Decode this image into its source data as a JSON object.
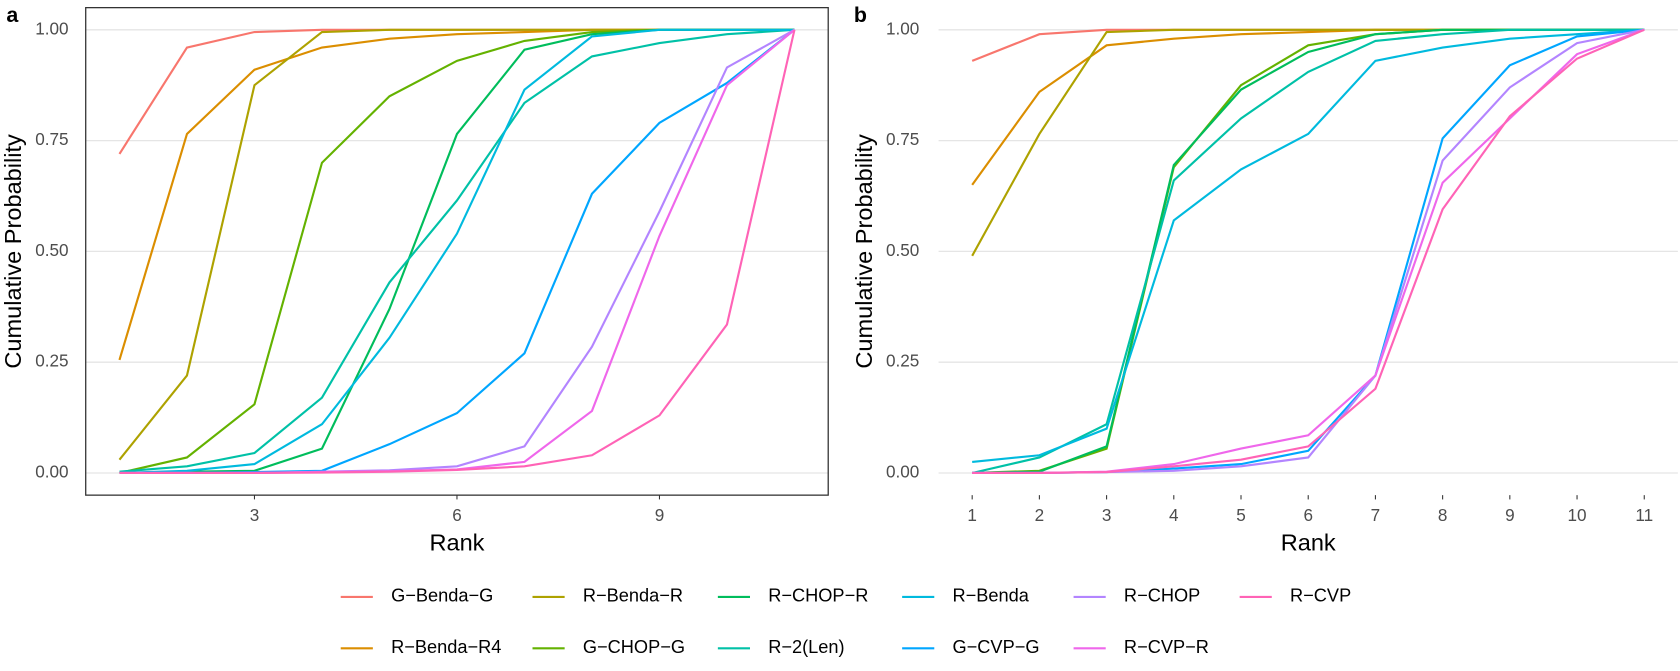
{
  "chart_data": [
    {
      "type": "line",
      "panel_label": "a",
      "xlabel": "Rank",
      "ylabel": "Cumulative Probability",
      "x": [
        1,
        2,
        3,
        4,
        5,
        6,
        7,
        8,
        9,
        10,
        11
      ],
      "xlim": [
        0.5,
        11.5
      ],
      "xticks": [
        3,
        6,
        9
      ],
      "ylim": [
        -0.05,
        1.05
      ],
      "yticks": [
        {
          "value": 0,
          "label": "0.00"
        },
        {
          "value": 0.25,
          "label": "0.25"
        },
        {
          "value": 0.5,
          "label": "0.50"
        },
        {
          "value": 0.75,
          "label": "0.75"
        },
        {
          "value": 1,
          "label": "1.00"
        }
      ],
      "grid": true,
      "border": true,
      "series": [
        {
          "name": "G−Benda−G",
          "color": "#F8766D",
          "values": [
            0.72,
            0.96,
            0.995,
            1,
            1,
            1,
            1,
            1,
            1,
            1,
            1
          ]
        },
        {
          "name": "R−Benda−R4",
          "color": "#DB8E00",
          "values": [
            0.255,
            0.765,
            0.91,
            0.96,
            0.98,
            0.99,
            0.995,
            1,
            1,
            1,
            1
          ]
        },
        {
          "name": "R−Benda−R",
          "color": "#AEA200",
          "values": [
            0.03,
            0.22,
            0.875,
            0.995,
            1,
            1,
            1,
            1,
            1,
            1,
            1
          ]
        },
        {
          "name": "G−CHOP−G",
          "color": "#64B200",
          "values": [
            0,
            0.035,
            0.155,
            0.7,
            0.85,
            0.93,
            0.975,
            0.995,
            1,
            1,
            1
          ]
        },
        {
          "name": "R−CHOP−R",
          "color": "#00BD5C",
          "values": [
            0,
            0.003,
            0.005,
            0.055,
            0.37,
            0.765,
            0.955,
            0.99,
            1,
            1,
            1
          ]
        },
        {
          "name": "R−2(Len)",
          "color": "#00C1A7",
          "values": [
            0.003,
            0.015,
            0.045,
            0.17,
            0.43,
            0.615,
            0.835,
            0.94,
            0.97,
            0.99,
            1
          ]
        },
        {
          "name": "R−Benda",
          "color": "#00BADE",
          "values": [
            0,
            0.005,
            0.02,
            0.11,
            0.305,
            0.54,
            0.865,
            0.985,
            1,
            1,
            1
          ]
        },
        {
          "name": "G−CVP−G",
          "color": "#00A6FF",
          "values": [
            0,
            0,
            0.002,
            0.005,
            0.065,
            0.135,
            0.27,
            0.63,
            0.79,
            0.88,
            1
          ]
        },
        {
          "name": "R−CHOP",
          "color": "#B385FF",
          "values": [
            0,
            0,
            0,
            0.003,
            0.006,
            0.015,
            0.06,
            0.285,
            0.59,
            0.915,
            1
          ]
        },
        {
          "name": "R−CVP−R",
          "color": "#EF67EB",
          "values": [
            0,
            0,
            0,
            0.002,
            0.004,
            0.008,
            0.025,
            0.14,
            0.535,
            0.875,
            1
          ]
        },
        {
          "name": "R−CVP",
          "color": "#FF63B6",
          "values": [
            0,
            0,
            0,
            0.001,
            0.003,
            0.007,
            0.015,
            0.04,
            0.13,
            0.335,
            1
          ]
        }
      ]
    },
    {
      "type": "line",
      "panel_label": "b",
      "xlabel": "Rank",
      "ylabel": "Cumulative Probability",
      "x": [
        1,
        2,
        3,
        4,
        5,
        6,
        7,
        8,
        9,
        10,
        11
      ],
      "xlim": [
        0.5,
        11.5
      ],
      "xticks": [
        1,
        2,
        3,
        4,
        5,
        6,
        7,
        8,
        9,
        10,
        11
      ],
      "ylim": [
        -0.05,
        1.05
      ],
      "yticks": [
        {
          "value": 0,
          "label": "0.00"
        },
        {
          "value": 0.25,
          "label": "0.25"
        },
        {
          "value": 0.5,
          "label": "0.50"
        },
        {
          "value": 0.75,
          "label": "0.75"
        },
        {
          "value": 1,
          "label": "1.00"
        }
      ],
      "grid": true,
      "border": false,
      "series": [
        {
          "name": "G−Benda−G",
          "color": "#F8766D",
          "values": [
            0.93,
            0.99,
            1,
            1,
            1,
            1,
            1,
            1,
            1,
            1,
            1
          ]
        },
        {
          "name": "R−Benda−R4",
          "color": "#DB8E00",
          "values": [
            0.65,
            0.86,
            0.965,
            0.98,
            0.99,
            0.995,
            1,
            1,
            1,
            1,
            1
          ]
        },
        {
          "name": "R−Benda−R",
          "color": "#AEA200",
          "values": [
            0.49,
            0.765,
            0.995,
            1,
            1,
            1,
            1,
            1,
            1,
            1,
            1
          ]
        },
        {
          "name": "G−CHOP−G",
          "color": "#64B200",
          "values": [
            0,
            0.005,
            0.055,
            0.69,
            0.875,
            0.965,
            0.99,
            1,
            1,
            1,
            1
          ]
        },
        {
          "name": "R−CHOP−R",
          "color": "#00BD5C",
          "values": [
            0,
            0.003,
            0.06,
            0.695,
            0.865,
            0.95,
            0.99,
            1,
            1,
            1,
            1
          ]
        },
        {
          "name": "R−2(Len)",
          "color": "#00C1A7",
          "values": [
            0,
            0.035,
            0.11,
            0.66,
            0.8,
            0.905,
            0.975,
            0.99,
            1,
            1,
            1
          ]
        },
        {
          "name": "R−Benda",
          "color": "#00BADE",
          "values": [
            0.025,
            0.04,
            0.1,
            0.57,
            0.685,
            0.765,
            0.93,
            0.96,
            0.98,
            0.99,
            1
          ]
        },
        {
          "name": "G−CVP−G",
          "color": "#00A6FF",
          "values": [
            0,
            0,
            0.002,
            0.01,
            0.02,
            0.05,
            0.22,
            0.755,
            0.92,
            0.985,
            1
          ]
        },
        {
          "name": "R−CHOP",
          "color": "#B385FF",
          "values": [
            0,
            0,
            0.002,
            0.005,
            0.015,
            0.035,
            0.22,
            0.705,
            0.87,
            0.97,
            1
          ]
        },
        {
          "name": "R−CVP−R",
          "color": "#EF67EB",
          "values": [
            0,
            0,
            0.003,
            0.02,
            0.055,
            0.085,
            0.22,
            0.655,
            0.8,
            0.945,
            1
          ]
        },
        {
          "name": "R−CVP",
          "color": "#FF63B6",
          "values": [
            0,
            0,
            0.002,
            0.015,
            0.03,
            0.06,
            0.19,
            0.595,
            0.805,
            0.935,
            1
          ]
        }
      ]
    }
  ]
}
